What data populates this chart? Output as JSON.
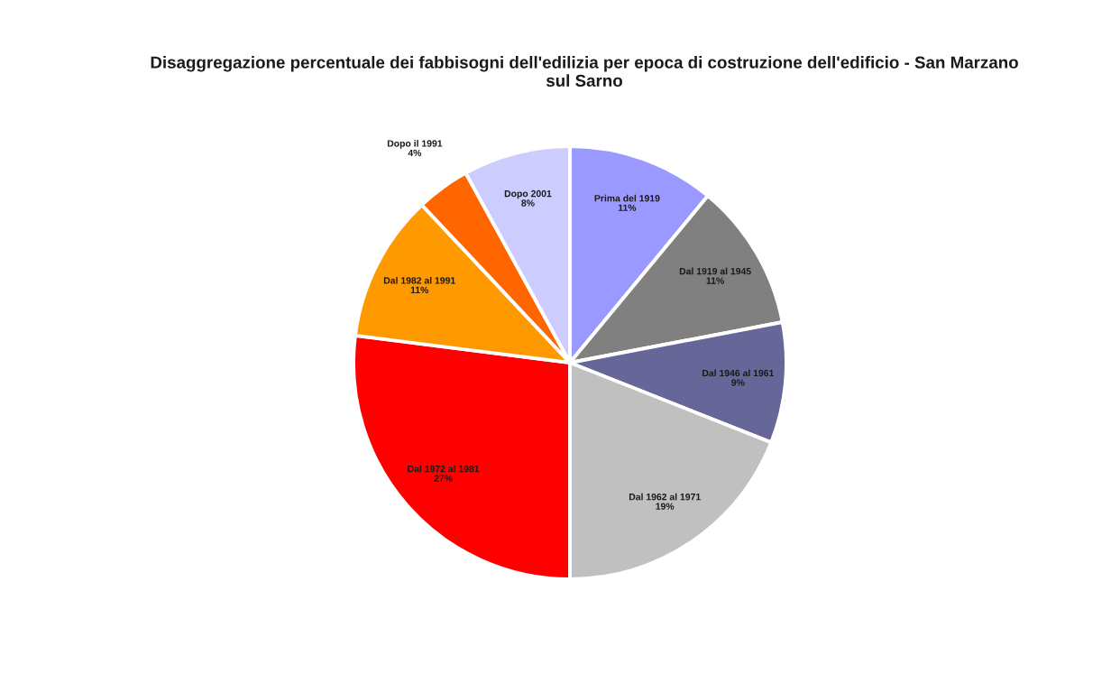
{
  "chart_data": {
    "type": "pie",
    "title": "Disaggregazione percentuale dei fabbisogni dell'edilizia per epoca di costruzione dell'edificio - San Marzano sul Sarno",
    "categories": [
      "Prima del 1919",
      "Dal 1919 al 1945",
      "Dal 1946 al 1961",
      "Dal 1962 al 1971",
      "Dal 1972 al 1981",
      "Dal 1982 al 1991",
      "Dopo il 1991",
      "Dopo 2001"
    ],
    "values": [
      11,
      11,
      9,
      19,
      27,
      11,
      4,
      8
    ],
    "colors": [
      "#9999ff",
      "#808080",
      "#666699",
      "#c0c0c0",
      "#ff0000",
      "#ff9900",
      "#ff6600",
      "#ccccff"
    ],
    "value_labels": [
      "11%",
      "11%",
      "9%",
      "19%",
      "27%",
      "11%",
      "4%",
      "8%"
    ]
  }
}
